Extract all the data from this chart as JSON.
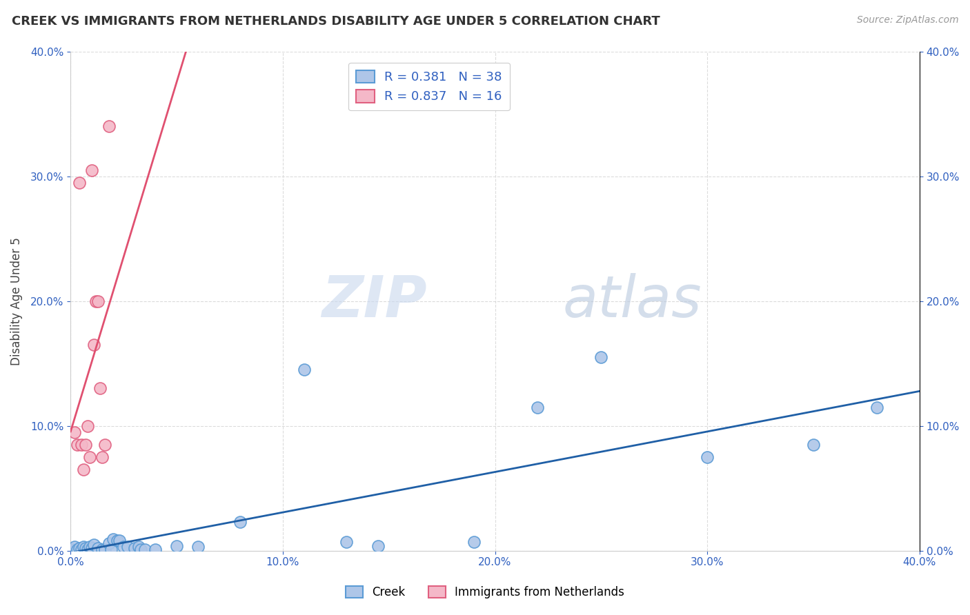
{
  "title": "CREEK VS IMMIGRANTS FROM NETHERLANDS DISABILITY AGE UNDER 5 CORRELATION CHART",
  "source": "Source: ZipAtlas.com",
  "yaxis_label": "Disability Age Under 5",
  "xlim": [
    0.0,
    0.4
  ],
  "ylim": [
    0.0,
    0.4
  ],
  "creek_color": "#aec6e8",
  "creek_edge_color": "#5b9bd5",
  "netherlands_color": "#f4b8c8",
  "netherlands_edge_color": "#e06080",
  "trendline_creek_color": "#1f5fa6",
  "trendline_netherlands_color": "#e05070",
  "creek_R": 0.381,
  "creek_N": 38,
  "netherlands_R": 0.837,
  "netherlands_N": 16,
  "legend_text_color": "#3060c0",
  "watermark_zip": "ZIP",
  "watermark_atlas": "atlas",
  "background_color": "#ffffff",
  "grid_color": "#d8d8d8",
  "creek_points": [
    [
      0.001,
      0.001
    ],
    [
      0.002,
      0.003
    ],
    [
      0.003,
      0.001
    ],
    [
      0.004,
      0.002
    ],
    [
      0.005,
      0.001
    ],
    [
      0.006,
      0.003
    ],
    [
      0.007,
      0.002
    ],
    [
      0.008,
      0.001
    ],
    [
      0.009,
      0.003
    ],
    [
      0.01,
      0.002
    ],
    [
      0.011,
      0.005
    ],
    [
      0.013,
      0.002
    ],
    [
      0.015,
      0.001
    ],
    [
      0.016,
      0.001
    ],
    [
      0.018,
      0.006
    ],
    [
      0.019,
      0.001
    ],
    [
      0.02,
      0.009
    ],
    [
      0.022,
      0.008
    ],
    [
      0.023,
      0.008
    ],
    [
      0.025,
      0.003
    ],
    [
      0.027,
      0.003
    ],
    [
      0.03,
      0.002
    ],
    [
      0.032,
      0.003
    ],
    [
      0.033,
      0.001
    ],
    [
      0.035,
      0.001
    ],
    [
      0.04,
      0.001
    ],
    [
      0.05,
      0.004
    ],
    [
      0.06,
      0.003
    ],
    [
      0.08,
      0.023
    ],
    [
      0.11,
      0.145
    ],
    [
      0.13,
      0.007
    ],
    [
      0.145,
      0.004
    ],
    [
      0.19,
      0.007
    ],
    [
      0.22,
      0.115
    ],
    [
      0.25,
      0.155
    ],
    [
      0.3,
      0.075
    ],
    [
      0.35,
      0.085
    ],
    [
      0.38,
      0.115
    ]
  ],
  "netherlands_points": [
    [
      0.002,
      0.095
    ],
    [
      0.003,
      0.085
    ],
    [
      0.004,
      0.295
    ],
    [
      0.005,
      0.085
    ],
    [
      0.006,
      0.065
    ],
    [
      0.007,
      0.085
    ],
    [
      0.008,
      0.1
    ],
    [
      0.009,
      0.075
    ],
    [
      0.01,
      0.305
    ],
    [
      0.011,
      0.165
    ],
    [
      0.012,
      0.2
    ],
    [
      0.013,
      0.2
    ],
    [
      0.014,
      0.13
    ],
    [
      0.015,
      0.075
    ],
    [
      0.016,
      0.085
    ],
    [
      0.018,
      0.34
    ]
  ]
}
